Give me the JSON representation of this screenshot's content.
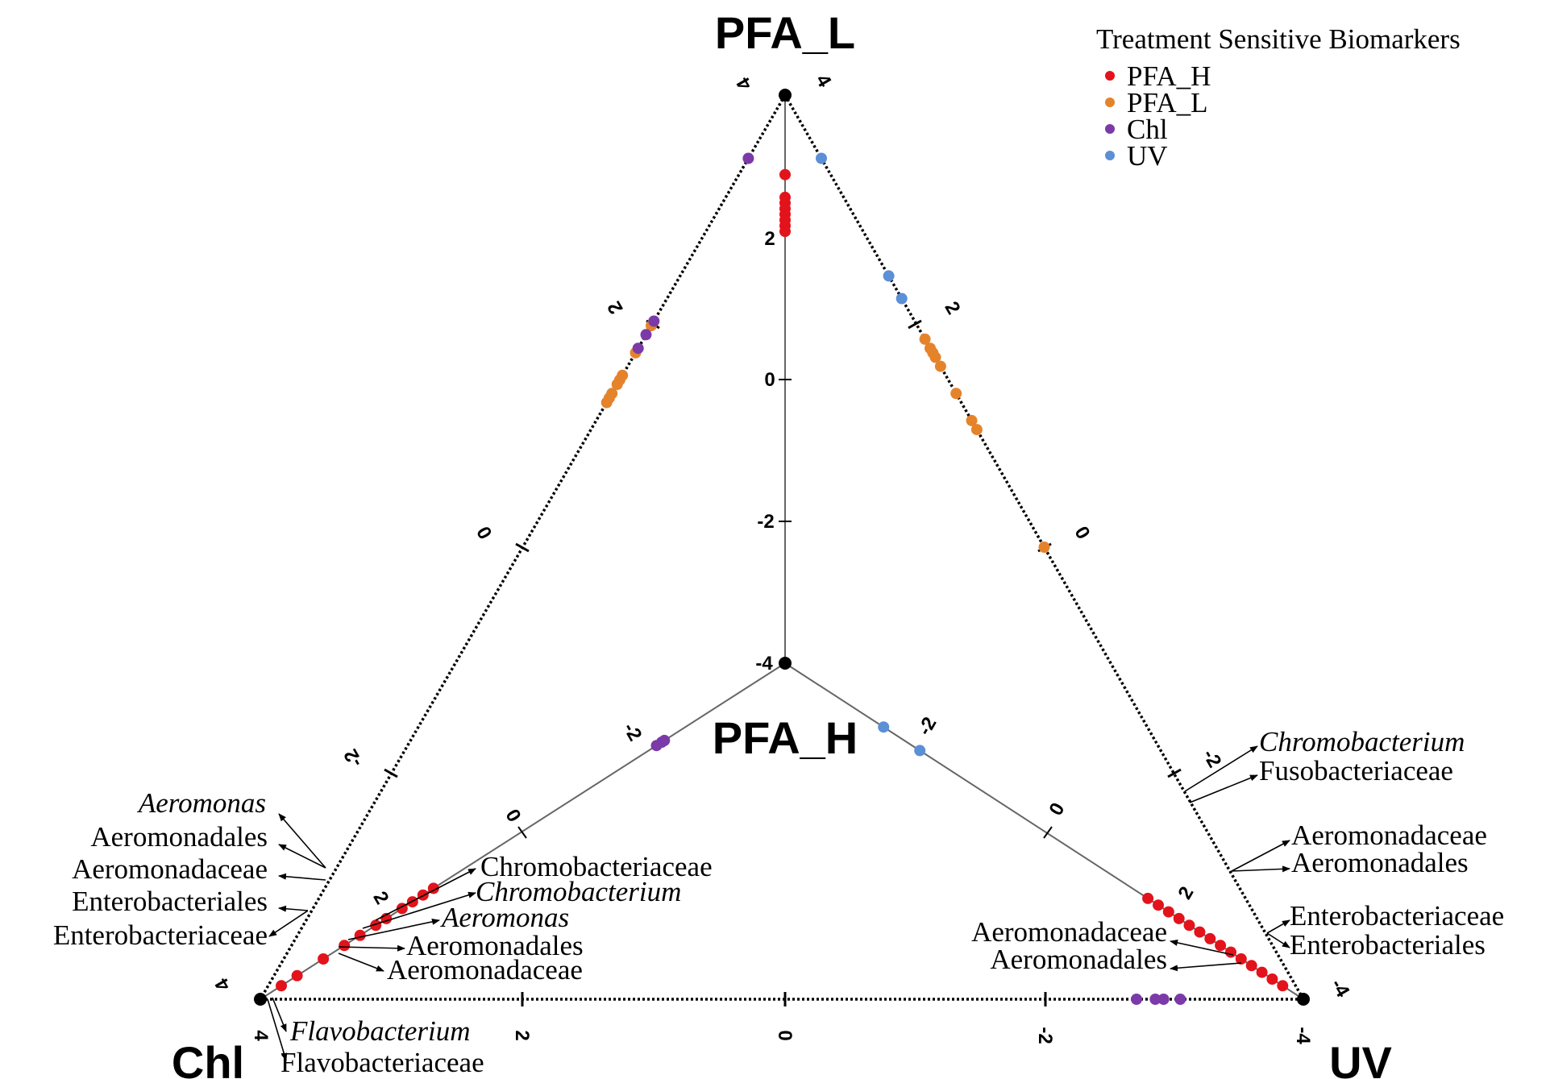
{
  "chart_data": {
    "type": "scatter",
    "subtype": "radial-triangle (three log-ratio axes)",
    "vertices": [
      "PFA_L",
      "PFA_H",
      "Chl",
      "UV"
    ],
    "axes": [
      {
        "name": "PFA_L",
        "ticks": [
          "4",
          "2",
          "0",
          "-2",
          "-4"
        ]
      },
      {
        "name": "PFA_L-UV edge",
        "ticks": [
          "4",
          "2",
          "0",
          "-2",
          "-4"
        ]
      },
      {
        "name": "PFA_L-Chl edge",
        "ticks": [
          "4",
          "2",
          "0",
          "-2",
          "4"
        ]
      },
      {
        "name": "Chl-UV edge",
        "ticks": [
          "4",
          "2",
          "0",
          "-2",
          "-4"
        ]
      },
      {
        "name": "Chl spoke",
        "ticks": [
          "-2",
          "0",
          "2",
          "-4"
        ]
      },
      {
        "name": "UV spoke",
        "ticks": [
          "-2",
          "0",
          "2",
          "4"
        ]
      }
    ],
    "legend": {
      "title": "Treatment Sensitive Biomarkers",
      "position": "top-right",
      "entries": [
        {
          "name": "PFA_H",
          "color": "#e3131b"
        },
        {
          "name": "PFA_L",
          "color": "#e5832b"
        },
        {
          "name": "Chl",
          "color": "#7b3aa8"
        },
        {
          "name": "UV",
          "color": "#5b8fd6"
        }
      ]
    },
    "series": [
      {
        "name": "PFA_H",
        "axis": "PFA_L",
        "t": [
          0.14,
          0.18,
          0.19,
          0.2,
          0.21,
          0.22,
          0.23,
          0.24
        ]
      },
      {
        "name": "PFA_H",
        "axis": "Chl spoke",
        "t": [
          0.04,
          0.07,
          0.12,
          0.16,
          0.19,
          0.22,
          0.24,
          0.27,
          0.29,
          0.31,
          0.33
        ]
      },
      {
        "name": "PFA_H",
        "axis": "UV spoke",
        "t": [
          0.04,
          0.06,
          0.08,
          0.1,
          0.12,
          0.14,
          0.16,
          0.18,
          0.2,
          0.22,
          0.24,
          0.26,
          0.28,
          0.3
        ]
      },
      {
        "name": "PFA_L",
        "axis": "PFA_L-Chl edge",
        "t": [
          0.255,
          0.285,
          0.31,
          0.315,
          0.32,
          0.33,
          0.335,
          0.34
        ]
      },
      {
        "name": "PFA_L",
        "axis": "PFA_L-UV edge",
        "t": [
          0.27,
          0.28,
          0.285,
          0.29,
          0.3,
          0.33,
          0.36,
          0.37,
          0.5
        ]
      },
      {
        "name": "Chl",
        "axis": "PFA_L-Chl edge",
        "t": [
          0.07,
          0.25,
          0.265,
          0.28
        ]
      },
      {
        "name": "Chl",
        "axis": "Chl spoke",
        "t": [
          0.755,
          0.765,
          0.77
        ]
      },
      {
        "name": "Chl",
        "axis": "Chl-UV edge",
        "t": [
          0.84,
          0.858,
          0.866,
          0.882
        ]
      },
      {
        "name": "UV",
        "axis": "PFA_L-UV edge",
        "t": [
          0.07,
          0.2,
          0.225
        ]
      },
      {
        "name": "UV",
        "axis": "UV spoke",
        "t": [
          0.81,
          0.74
        ]
      }
    ],
    "annotations": {
      "left_upper": [
        "Aeromonas",
        "Aeromonadales",
        "Aeromonadaceae",
        "Enterobacteriales",
        "Enterobacteriaceae"
      ],
      "left_spoke": [
        "Chromobacteriaceae",
        "Chromobacterium",
        "Aeromonas",
        "Aeromonadales",
        "Aeromonadaceae"
      ],
      "bottom_left": [
        "Flavobacterium",
        "Flavobacteriaceae"
      ],
      "right_upper": [
        "Chromobacterium",
        "Fusobacteriaceae",
        "Aeromonadaceae",
        "Aeromonadales",
        "Enterobacteriaceae",
        "Enterobacteriales"
      ],
      "right_spoke": [
        "Aeromonadaceae",
        "Aeromonadales"
      ]
    }
  }
}
